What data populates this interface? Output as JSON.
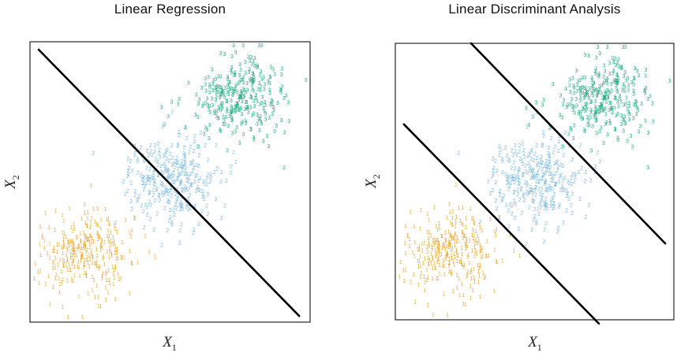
{
  "chart_data": [
    {
      "type": "scatter",
      "title": "Linear Regression",
      "xlabel": "X_1",
      "ylabel": "X_2",
      "xlabel_base": "X",
      "xlabel_sub": "1",
      "ylabel_base": "X",
      "ylabel_sub": "2",
      "axes": {
        "ticks": false,
        "tick_labels": false,
        "xlim": [
          0,
          1
        ],
        "ylim": [
          0,
          1
        ],
        "grid": false
      },
      "coords": "fractions of the plot box; origin top-left; y increases downward",
      "classes": [
        {
          "label": "1",
          "color": "#E7A52E",
          "center": [
            0.205,
            0.757
          ],
          "sd": [
            0.08,
            0.077
          ],
          "n": 300
        },
        {
          "label": "2",
          "color": "#72B5E6",
          "center": [
            0.5,
            0.503
          ],
          "sd": [
            0.076,
            0.079
          ],
          "n": 300
        },
        {
          "label": "3",
          "color": "#18A579",
          "center": [
            0.752,
            0.205
          ],
          "sd": [
            0.086,
            0.073
          ],
          "n": 300
        }
      ],
      "boundaries": [
        {
          "x1": 0.031,
          "y1": 0.028,
          "x2": 0.961,
          "y2": 0.978
        }
      ],
      "boundary_color": "#000000",
      "seed": 7
    },
    {
      "type": "scatter",
      "title": "Linear Discriminant Analysis",
      "xlabel": "X_1",
      "ylabel": "X_2",
      "xlabel_base": "X",
      "xlabel_sub": "1",
      "ylabel_base": "X",
      "ylabel_sub": "2",
      "axes": {
        "ticks": false,
        "tick_labels": false,
        "xlim": [
          0,
          1
        ],
        "ylim": [
          0,
          1
        ],
        "grid": false
      },
      "coords": "fractions of the plot box; origin top-left; y increases downward",
      "classes": [
        {
          "label": "1",
          "color": "#E7A52E",
          "center": [
            0.205,
            0.757
          ],
          "sd": [
            0.08,
            0.077
          ],
          "n": 300
        },
        {
          "label": "2",
          "color": "#72B5E6",
          "center": [
            0.5,
            0.503
          ],
          "sd": [
            0.076,
            0.079
          ],
          "n": 300
        },
        {
          "label": "3",
          "color": "#18A579",
          "center": [
            0.752,
            0.205
          ],
          "sd": [
            0.086,
            0.073
          ],
          "n": 300
        }
      ],
      "boundaries": [
        {
          "x1": 0.272,
          "y1": 0.0,
          "x2": 0.969,
          "y2": 0.724
        },
        {
          "x1": 0.031,
          "y1": 0.293,
          "x2": 0.731,
          "y2": 1.014
        }
      ],
      "boundary_color": "#000000",
      "seed": 7
    }
  ]
}
